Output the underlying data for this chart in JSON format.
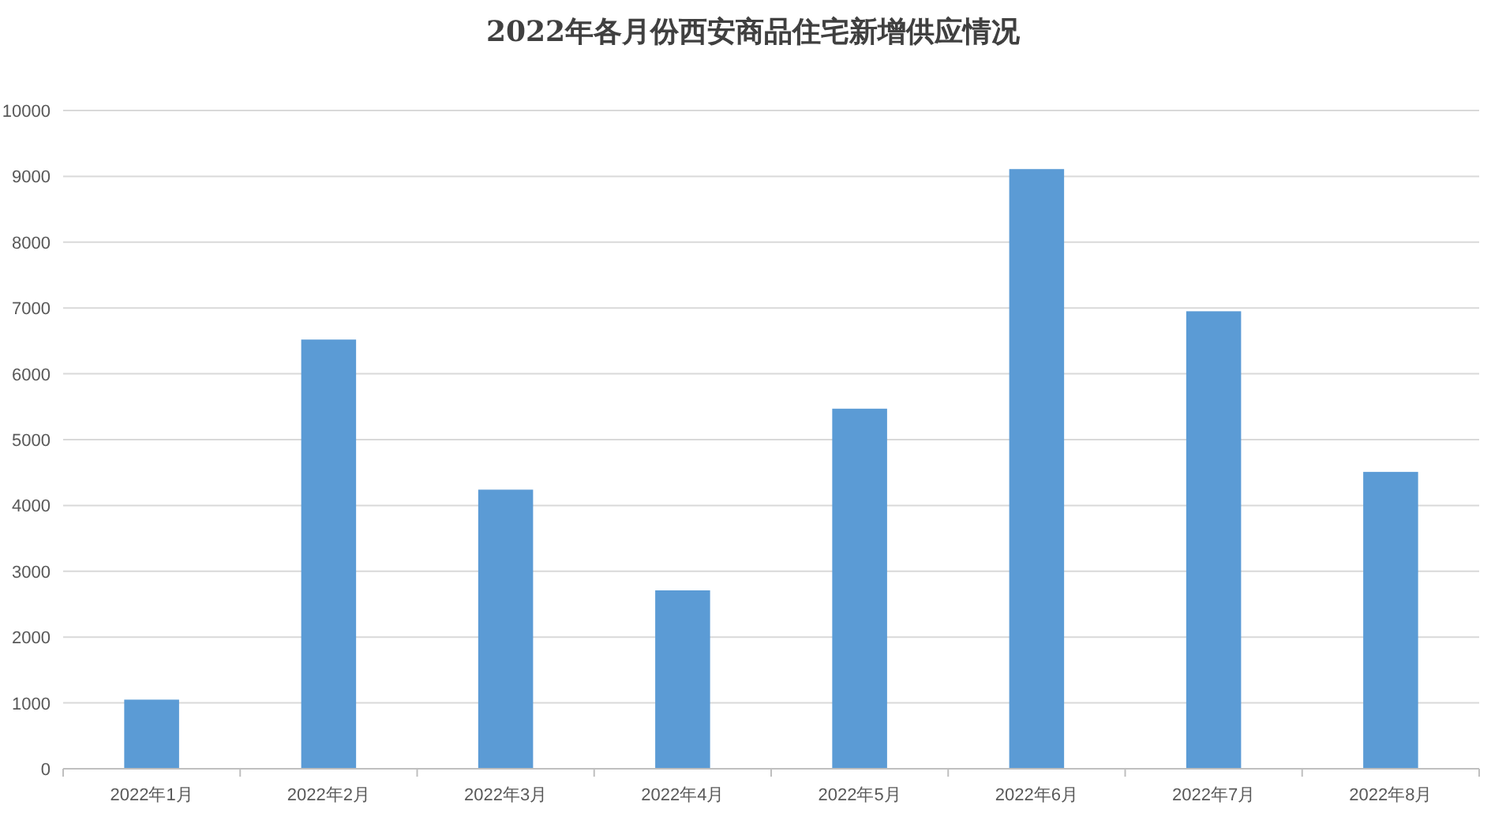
{
  "chart_data": {
    "type": "bar",
    "title": "2022年各月份西安商品住宅新增供应情况",
    "categories": [
      "2022年1月",
      "2022年2月",
      "2022年3月",
      "2022年4月",
      "2022年5月",
      "2022年6月",
      "2022年7月",
      "2022年8月"
    ],
    "values": [
      1050,
      6520,
      4240,
      2710,
      5470,
      9110,
      6950,
      4510
    ],
    "color": "#5b9bd5",
    "ylim": [
      0,
      10000
    ],
    "yticks": [
      0,
      1000,
      2000,
      3000,
      4000,
      5000,
      6000,
      7000,
      8000,
      9000,
      10000
    ],
    "grid": "y"
  }
}
